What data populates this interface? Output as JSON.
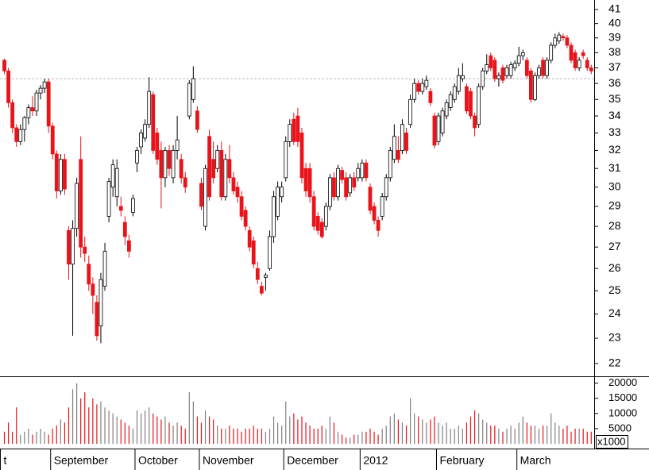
{
  "chart_data": {
    "type": "candlestick",
    "log_scale": true,
    "ylim": [
      21.54,
      41.69
    ],
    "yticks": [
      22,
      23,
      24,
      25,
      26,
      27,
      28,
      29,
      30,
      31,
      32,
      33,
      34,
      35,
      36,
      37,
      38,
      39,
      40,
      41
    ],
    "reference_line": 36.3,
    "up_color": "#ffffff",
    "down_color": "#e8141b",
    "volume_up_color": "#808080",
    "xticks": [
      {
        "value": -0.5,
        "label": "t"
      },
      {
        "value": 12,
        "label": "September"
      },
      {
        "value": 33,
        "label": "October"
      },
      {
        "value": 49,
        "label": "November"
      },
      {
        "value": 70,
        "label": "December"
      },
      {
        "value": 89,
        "label": "2012"
      },
      {
        "value": 108,
        "label": "February"
      },
      {
        "value": 128,
        "label": "March"
      }
    ],
    "ohlc": [
      [
        37.5,
        37.6,
        36.6,
        36.8
      ],
      [
        36.8,
        37.0,
        34.5,
        34.8
      ],
      [
        34.8,
        35.0,
        33.0,
        33.3
      ],
      [
        33.3,
        33.5,
        32.2,
        32.5
      ],
      [
        32.5,
        33.5,
        32.3,
        33.2
      ],
      [
        33.2,
        34.0,
        32.5,
        33.9
      ],
      [
        33.9,
        34.7,
        33.5,
        34.5
      ],
      [
        34.5,
        35.2,
        34.0,
        34.3
      ],
      [
        34.3,
        35.6,
        34.0,
        35.4
      ],
      [
        35.4,
        35.9,
        35.0,
        35.7
      ],
      [
        35.7,
        36.3,
        35.4,
        36.1
      ],
      [
        36.1,
        36.3,
        33.0,
        33.4
      ],
      [
        33.4,
        33.6,
        31.5,
        31.8
      ],
      [
        31.8,
        32.0,
        29.4,
        29.8
      ],
      [
        29.8,
        31.8,
        29.6,
        31.5
      ],
      [
        31.5,
        31.8,
        29.6,
        29.9
      ],
      [
        27.8,
        28.0,
        25.5,
        26.2
      ],
      [
        26.2,
        28.3,
        23.1,
        27.9
      ],
      [
        27.9,
        30.5,
        27.5,
        30.2
      ],
      [
        31.5,
        32.8,
        26.5,
        27.0
      ],
      [
        27.0,
        27.5,
        26.3,
        26.7
      ],
      [
        26.2,
        26.6,
        25.0,
        25.3
      ],
      [
        25.3,
        25.6,
        24.0,
        24.8
      ],
      [
        24.5,
        24.8,
        22.9,
        23.1
      ],
      [
        23.5,
        25.8,
        22.8,
        25.5
      ],
      [
        25.2,
        27.2,
        25.0,
        26.8
      ],
      [
        28.5,
        30.5,
        28.2,
        30.3
      ],
      [
        30.0,
        31.5,
        29.5,
        31.2
      ],
      [
        29.5,
        31.5,
        29.0,
        31.0
      ],
      [
        29.0,
        29.5,
        28.5,
        28.8
      ],
      [
        28.2,
        28.5,
        27.1,
        27.5
      ],
      [
        27.3,
        27.6,
        26.5,
        26.8
      ],
      [
        28.7,
        29.6,
        28.5,
        29.4
      ],
      [
        31.3,
        32.2,
        30.8,
        32.0
      ],
      [
        32.2,
        33.2,
        31.8,
        33.0
      ],
      [
        32.7,
        33.8,
        32.5,
        33.5
      ],
      [
        33.5,
        36.4,
        33.3,
        35.5
      ],
      [
        35.3,
        35.5,
        31.8,
        32.0
      ],
      [
        33.0,
        33.3,
        31.2,
        31.5
      ],
      [
        32.0,
        32.5,
        28.9,
        30.5
      ],
      [
        30.5,
        32.2,
        30.0,
        32.0
      ],
      [
        32.0,
        32.3,
        30.6,
        31.0
      ],
      [
        30.5,
        32.3,
        30.2,
        32.0
      ],
      [
        32.0,
        34.0,
        31.5,
        32.6
      ],
      [
        31.5,
        31.8,
        30.2,
        30.5
      ],
      [
        30.5,
        30.8,
        29.7,
        30.0
      ],
      [
        34.0,
        36.2,
        33.8,
        36.0
      ],
      [
        35.0,
        37.1,
        34.8,
        36.3
      ],
      [
        34.3,
        34.6,
        33.0,
        33.2
      ],
      [
        30.2,
        30.5,
        28.8,
        29.0
      ],
      [
        28.0,
        31.2,
        27.8,
        31.0
      ],
      [
        32.8,
        33.2,
        29.3,
        29.5
      ],
      [
        31.5,
        32.5,
        30.2,
        30.5
      ],
      [
        31.0,
        32.3,
        30.8,
        32.0
      ],
      [
        32.0,
        32.5,
        29.3,
        29.5
      ],
      [
        29.5,
        31.8,
        29.3,
        31.5
      ],
      [
        31.5,
        32.3,
        30.2,
        30.5
      ],
      [
        30.5,
        30.8,
        29.6,
        29.8
      ],
      [
        30.0,
        30.3,
        29.2,
        29.5
      ],
      [
        29.5,
        29.8,
        28.3,
        28.5
      ],
      [
        28.8,
        29.0,
        27.8,
        28.0
      ],
      [
        27.8,
        28.0,
        26.8,
        27.0
      ],
      [
        27.3,
        27.5,
        26.0,
        26.2
      ],
      [
        26.0,
        26.3,
        25.3,
        25.5
      ],
      [
        25.2,
        25.4,
        24.8,
        24.9
      ],
      [
        25.6,
        25.8,
        25.0,
        25.7
      ],
      [
        26.0,
        27.8,
        25.9,
        27.5
      ],
      [
        27.5,
        29.8,
        27.2,
        29.5
      ],
      [
        28.5,
        30.3,
        28.3,
        30.0
      ],
      [
        29.5,
        30.3,
        29.2,
        30.0
      ],
      [
        30.5,
        32.8,
        30.3,
        32.5
      ],
      [
        32.5,
        33.8,
        32.2,
        33.5
      ],
      [
        33.8,
        34.2,
        32.3,
        32.5
      ],
      [
        34.0,
        34.5,
        32.2,
        32.5
      ],
      [
        33.0,
        33.3,
        30.2,
        30.5
      ],
      [
        31.0,
        31.3,
        29.5,
        29.8
      ],
      [
        31.0,
        31.3,
        29.2,
        29.5
      ],
      [
        29.5,
        29.8,
        27.8,
        28.0
      ],
      [
        28.5,
        28.7,
        27.6,
        27.8
      ],
      [
        28.2,
        28.4,
        27.4,
        27.5
      ],
      [
        28.0,
        29.2,
        27.8,
        29.0
      ],
      [
        29.0,
        30.7,
        28.8,
        30.5
      ],
      [
        30.5,
        30.8,
        29.3,
        29.5
      ],
      [
        29.5,
        31.2,
        29.3,
        31.0
      ],
      [
        30.9,
        31.1,
        30.2,
        30.4
      ],
      [
        30.5,
        30.8,
        29.3,
        29.5
      ],
      [
        29.7,
        30.7,
        29.5,
        30.5
      ],
      [
        30.5,
        30.8,
        29.8,
        30.0
      ],
      [
        30.5,
        31.3,
        30.3,
        31.0
      ],
      [
        30.5,
        31.5,
        30.3,
        31.3
      ],
      [
        31.3,
        31.5,
        30.3,
        30.5
      ],
      [
        30.0,
        30.2,
        28.6,
        28.8
      ],
      [
        29.0,
        29.2,
        28.1,
        28.3
      ],
      [
        28.3,
        28.5,
        27.5,
        27.8
      ],
      [
        28.5,
        29.7,
        28.3,
        29.5
      ],
      [
        29.5,
        30.7,
        29.3,
        30.5
      ],
      [
        30.5,
        32.2,
        30.3,
        32.0
      ],
      [
        31.5,
        33.5,
        31.3,
        32.8
      ],
      [
        32.0,
        32.8,
        31.3,
        31.5
      ],
      [
        32.0,
        33.8,
        31.8,
        33.5
      ],
      [
        33.0,
        33.3,
        31.8,
        32.0
      ],
      [
        33.5,
        35.3,
        33.3,
        35.0
      ],
      [
        35.0,
        36.3,
        34.8,
        36.0
      ],
      [
        36.0,
        36.2,
        35.3,
        35.5
      ],
      [
        35.5,
        36.3,
        35.3,
        36.0
      ],
      [
        35.8,
        36.5,
        35.6,
        36.2
      ],
      [
        35.5,
        35.7,
        34.6,
        34.8
      ],
      [
        34.0,
        34.2,
        32.1,
        32.3
      ],
      [
        32.5,
        34.2,
        32.3,
        34.0
      ],
      [
        33.0,
        34.5,
        32.8,
        34.3
      ],
      [
        34.0,
        35.0,
        33.8,
        34.8
      ],
      [
        34.5,
        35.5,
        34.3,
        35.3
      ],
      [
        35.0,
        36.0,
        34.8,
        35.8
      ],
      [
        35.5,
        37.0,
        35.3,
        36.5
      ],
      [
        36.3,
        37.3,
        36.1,
        36.5
      ],
      [
        35.8,
        36.0,
        34.1,
        34.3
      ],
      [
        35.5,
        35.7,
        33.8,
        34.0
      ],
      [
        34.0,
        34.2,
        32.8,
        33.3
      ],
      [
        33.5,
        36.0,
        33.3,
        35.8
      ],
      [
        35.8,
        37.0,
        35.6,
        36.8
      ],
      [
        36.8,
        37.9,
        36.6,
        37.2
      ],
      [
        37.8,
        38.0,
        36.8,
        37.0
      ],
      [
        37.5,
        37.7,
        36.1,
        36.3
      ],
      [
        36.3,
        36.7,
        35.8,
        36.5
      ],
      [
        37.0,
        37.2,
        36.0,
        36.2
      ],
      [
        36.5,
        37.2,
        36.3,
        37.0
      ],
      [
        36.5,
        37.4,
        36.3,
        37.2
      ],
      [
        37.0,
        37.5,
        36.8,
        37.3
      ],
      [
        37.3,
        38.4,
        37.1,
        37.8
      ],
      [
        37.8,
        38.2,
        37.5,
        38.0
      ],
      [
        37.5,
        37.7,
        36.3,
        36.5
      ],
      [
        36.8,
        37.0,
        34.8,
        35.0
      ],
      [
        35.0,
        36.7,
        34.9,
        36.5
      ],
      [
        36.5,
        37.2,
        36.3,
        37.0
      ],
      [
        37.5,
        37.7,
        36.3,
        36.5
      ],
      [
        36.5,
        37.7,
        36.3,
        37.5
      ],
      [
        37.5,
        38.7,
        37.3,
        38.5
      ],
      [
        38.5,
        39.3,
        38.3,
        39.0
      ],
      [
        38.8,
        39.4,
        38.6,
        39.2
      ],
      [
        39.1,
        39.3,
        38.8,
        39.0
      ],
      [
        39.0,
        39.2,
        38.3,
        38.5
      ],
      [
        38.5,
        38.7,
        37.3,
        37.5
      ],
      [
        38.0,
        38.2,
        36.8,
        37.0
      ],
      [
        37.0,
        37.7,
        36.8,
        37.5
      ],
      [
        38.0,
        38.2,
        37.6,
        37.8
      ],
      [
        37.5,
        37.7,
        36.8,
        37.0
      ],
      [
        37.0,
        37.2,
        36.6,
        36.8
      ]
    ],
    "volume": {
      "ylim": [
        0,
        22000
      ],
      "yticks": [
        5000,
        10000,
        15000,
        20000
      ],
      "unit_label": "x1000",
      "values": [
        4000,
        7000,
        4000,
        12000,
        3000,
        4000,
        5000,
        3000,
        4000,
        5000,
        4000,
        3000,
        5000,
        6000,
        8000,
        7000,
        12000,
        18000,
        20000,
        15000,
        17000,
        12000,
        15000,
        13000,
        14000,
        12000,
        11000,
        10000,
        9000,
        8000,
        7000,
        6000,
        5000,
        11000,
        10000,
        11000,
        12000,
        10000,
        9000,
        8000,
        9000,
        7000,
        6000,
        7000,
        6000,
        5000,
        17000,
        14000,
        9000,
        7000,
        11000,
        9000,
        8000,
        6000,
        5000,
        5000,
        6000,
        5000,
        5000,
        4000,
        5000,
        5000,
        6000,
        5000,
        5000,
        4000,
        5000,
        9000,
        7000,
        6000,
        14000,
        9000,
        10000,
        8000,
        9000,
        7000,
        6000,
        5000,
        5000,
        6000,
        5000,
        9000,
        7000,
        4000,
        3000,
        2000,
        2000,
        3000,
        3000,
        4000,
        4000,
        5000,
        4000,
        3000,
        5000,
        6000,
        9000,
        10000,
        8000,
        7000,
        6000,
        15000,
        10000,
        9000,
        8000,
        7000,
        8000,
        9000,
        7000,
        6000,
        7000,
        5000,
        5000,
        6000,
        5000,
        7000,
        9000,
        11000,
        10000,
        8000,
        7000,
        6000,
        6000,
        5000,
        4000,
        5000,
        6000,
        5000,
        7000,
        9000,
        7000,
        6000,
        6000,
        5000,
        6000,
        6000,
        10000,
        7000,
        6000,
        5000,
        6000,
        4000,
        5000,
        5000,
        5000,
        4000,
        4000
      ]
    }
  }
}
